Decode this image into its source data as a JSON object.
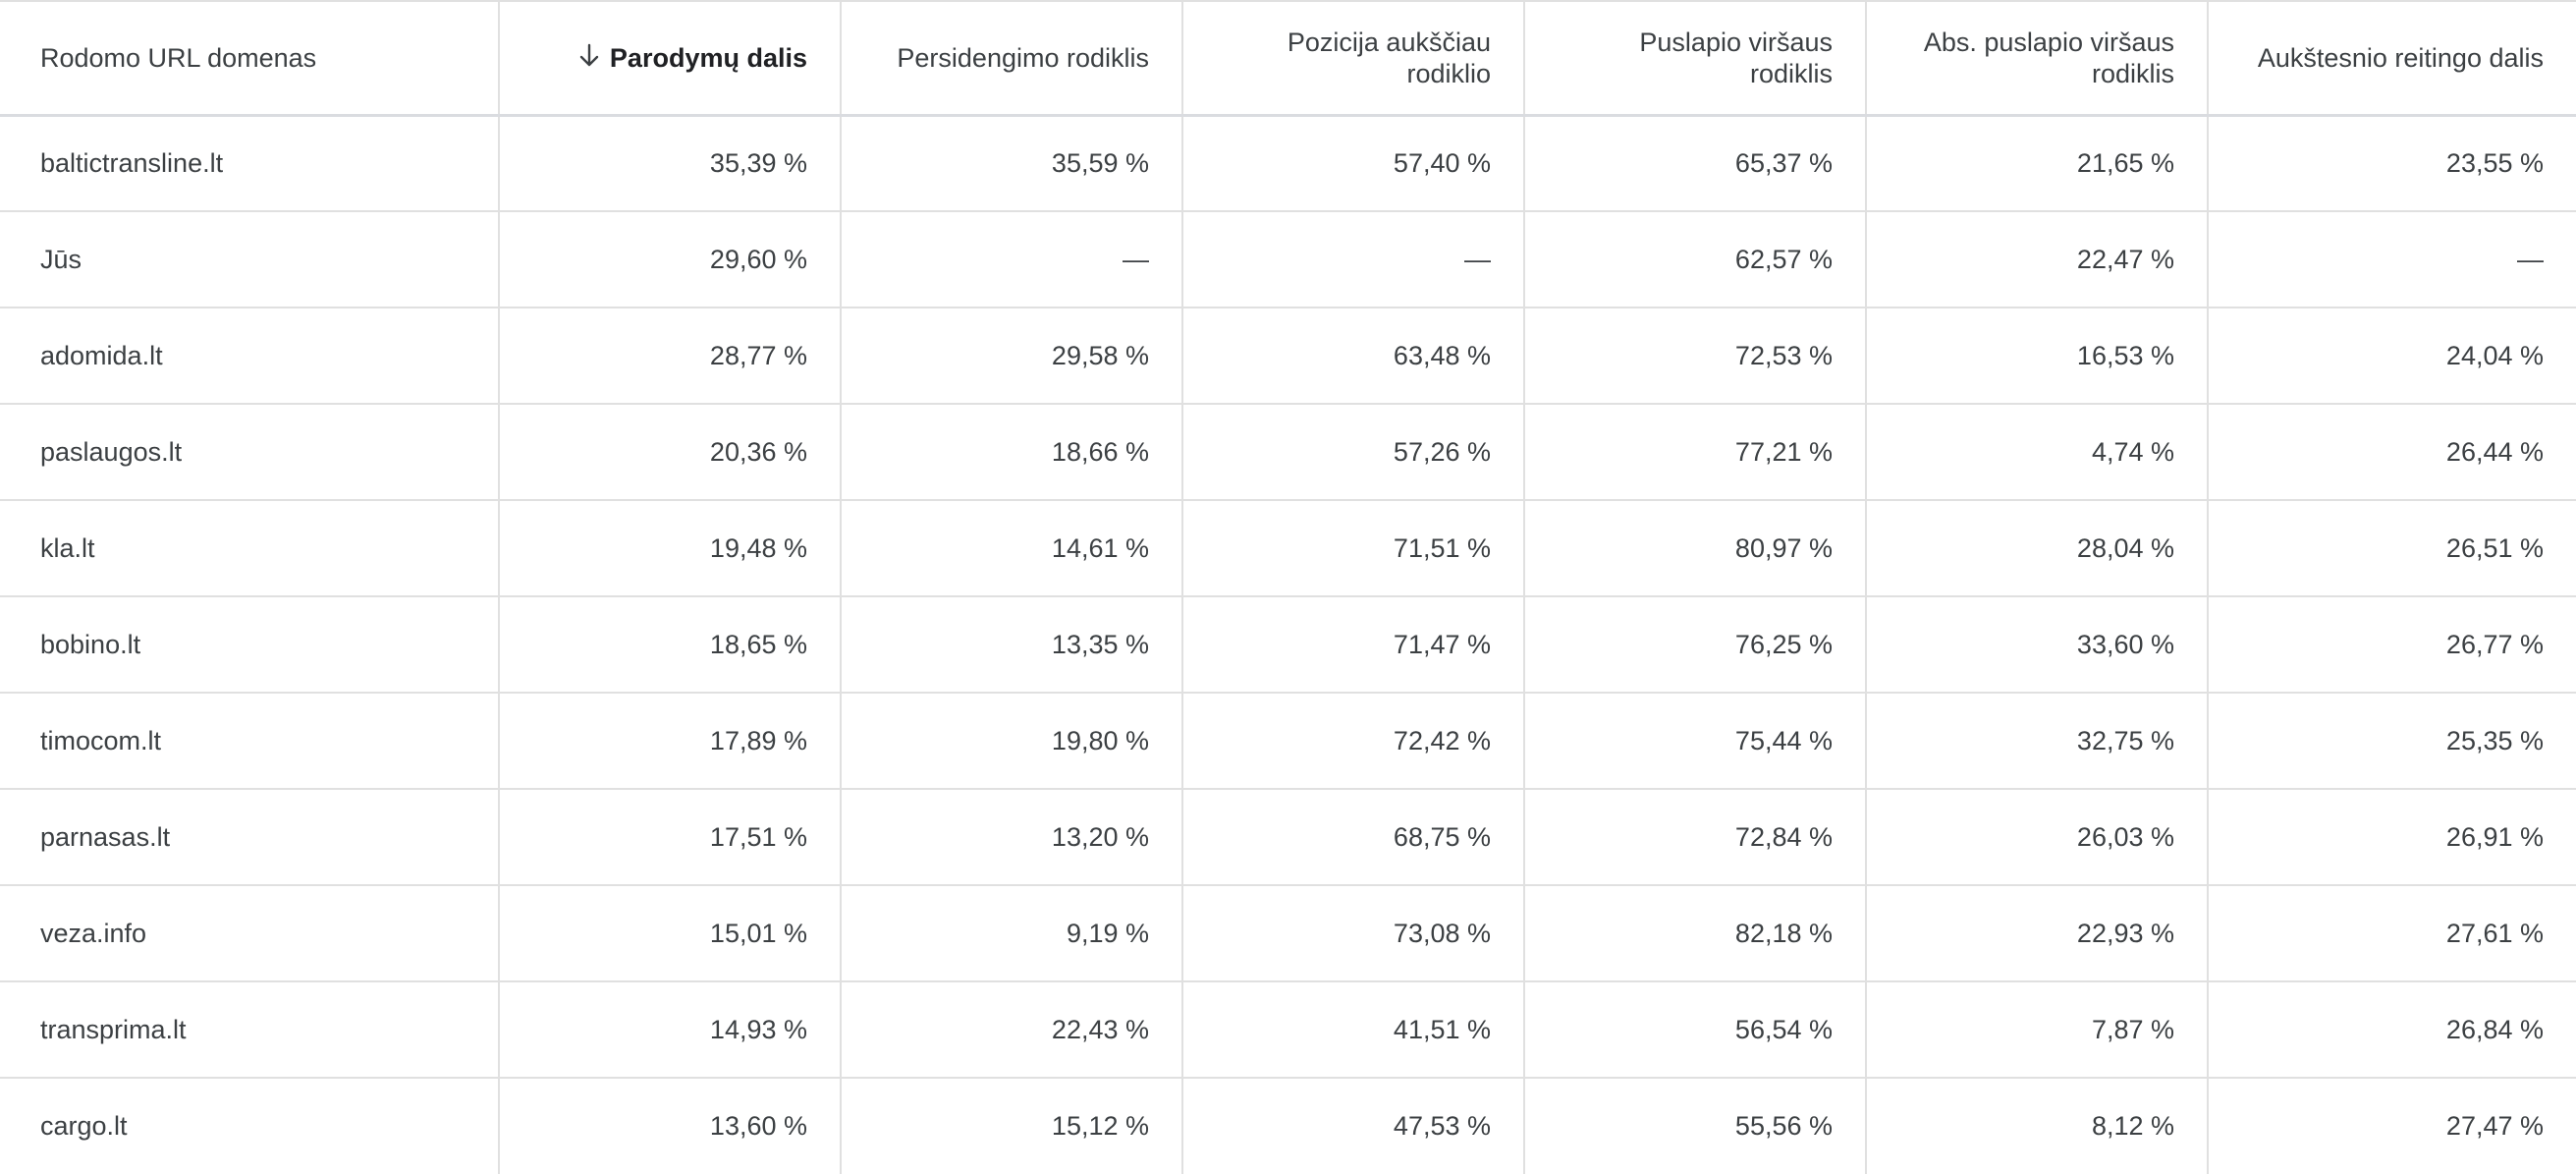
{
  "table": {
    "columns": [
      {
        "label": "Rodomo URL domenas",
        "align": "left",
        "sorted": false
      },
      {
        "label": "Parodymų dalis",
        "align": "right",
        "sorted": true,
        "sort_direction": "descending",
        "sort_icon": "arrow-down-icon"
      },
      {
        "label": "Persidengimo rodiklis",
        "align": "right",
        "sorted": false
      },
      {
        "label": "Pozicija aukščiau rodiklio",
        "align": "right",
        "sorted": false
      },
      {
        "label": "Puslapio viršaus rodiklis",
        "align": "right",
        "sorted": false
      },
      {
        "label": "Abs. puslapio viršaus rodiklis",
        "align": "right",
        "sorted": false
      },
      {
        "label": "Aukštesnio reitingo dalis",
        "align": "right",
        "sorted": false
      }
    ],
    "rows": [
      [
        "baltictransline.lt",
        "35,39 %",
        "35,59 %",
        "57,40 %",
        "65,37 %",
        "21,65 %",
        "23,55 %"
      ],
      [
        "Jūs",
        "29,60 %",
        "—",
        "—",
        "62,57 %",
        "22,47 %",
        "—"
      ],
      [
        "adomida.lt",
        "28,77 %",
        "29,58 %",
        "63,48 %",
        "72,53 %",
        "16,53 %",
        "24,04 %"
      ],
      [
        "paslaugos.lt",
        "20,36 %",
        "18,66 %",
        "57,26 %",
        "77,21 %",
        "4,74 %",
        "26,44 %"
      ],
      [
        "kla.lt",
        "19,48 %",
        "14,61 %",
        "71,51 %",
        "80,97 %",
        "28,04 %",
        "26,51 %"
      ],
      [
        "bobino.lt",
        "18,65 %",
        "13,35 %",
        "71,47 %",
        "76,25 %",
        "33,60 %",
        "26,77 %"
      ],
      [
        "timocom.lt",
        "17,89 %",
        "19,80 %",
        "72,42 %",
        "75,44 %",
        "32,75 %",
        "25,35 %"
      ],
      [
        "parnasas.lt",
        "17,51 %",
        "13,20 %",
        "68,75 %",
        "72,84 %",
        "26,03 %",
        "26,91 %"
      ],
      [
        "veza.info",
        "15,01 %",
        "9,19 %",
        "73,08 %",
        "82,18 %",
        "22,93 %",
        "27,61 %"
      ],
      [
        "transprima.lt",
        "14,93 %",
        "22,43 %",
        "41,51 %",
        "56,54 %",
        "7,87 %",
        "26,84 %"
      ],
      [
        "cargo.lt",
        "13,60 %",
        "15,12 %",
        "47,53 %",
        "55,56 %",
        "8,12 %",
        "27,47 %"
      ]
    ]
  },
  "colors": {
    "text": "#3c4043",
    "header_text": "#3c4043",
    "sorted_header_text": "#202124",
    "grid_line": "#e0e0e0",
    "background": "#ffffff"
  }
}
